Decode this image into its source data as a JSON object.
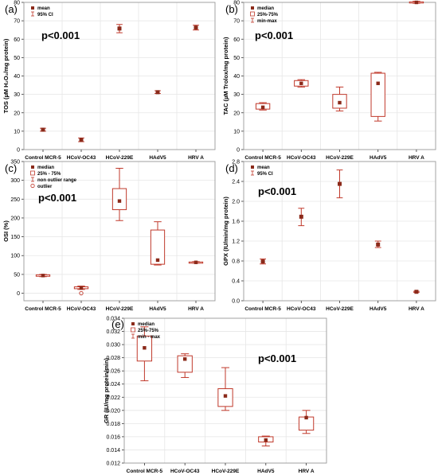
{
  "colors": {
    "box": "#c0392b",
    "point": "#8b2a1a",
    "axis": "#333333",
    "grid": "#e6e6e6",
    "text": "#000000"
  },
  "chart_data": [
    {
      "panel": "(a)",
      "type": "errorbar",
      "ylabel": "TOS (µM H₂O₂/mg protein)",
      "ylim": [
        0,
        80
      ],
      "yticks": [
        0,
        10,
        20,
        30,
        40,
        50,
        60,
        70,
        80
      ],
      "categories": [
        "Control MCR-5",
        "HCoV-OC43",
        "HCoV-229E",
        "HAdV5",
        "HRV A"
      ],
      "legend": [
        {
          "symbol": "square",
          "label": "mean"
        },
        {
          "symbol": "whisker",
          "label": "95% CI"
        }
      ],
      "pvalue": "p<0.001",
      "points": [
        {
          "center": 10.8,
          "lo": 10.0,
          "hi": 11.6
        },
        {
          "center": 5.3,
          "lo": 4.3,
          "hi": 6.3
        },
        {
          "center": 65.8,
          "lo": 63.5,
          "hi": 68.0
        },
        {
          "center": 31.2,
          "lo": 30.5,
          "hi": 32.0
        },
        {
          "center": 66.3,
          "lo": 65.0,
          "hi": 67.6
        }
      ]
    },
    {
      "panel": "(b)",
      "type": "box",
      "ylabel": "TAC (µM Trolox/mg protein)",
      "ylim": [
        0,
        80
      ],
      "yticks": [
        0,
        10,
        20,
        30,
        40,
        50,
        60,
        70,
        80
      ],
      "categories": [
        "Control MCR-5",
        "HCoV-OC43",
        "HCoV-229E",
        "HAdV5",
        "HRV A"
      ],
      "legend": [
        {
          "symbol": "dot",
          "label": "median"
        },
        {
          "symbol": "box",
          "label": "25%-75%"
        },
        {
          "symbol": "whisker",
          "label": "min-max"
        }
      ],
      "pvalue": "p<0.001",
      "boxes": [
        {
          "min": 21.5,
          "q1": 22.0,
          "median": 23.0,
          "q3": 25.0,
          "max": 25.5
        },
        {
          "min": 34.0,
          "q1": 34.5,
          "median": 36.0,
          "q3": 37.5,
          "max": 38.0
        },
        {
          "min": 21.0,
          "q1": 22.5,
          "median": 25.5,
          "q3": 30.0,
          "max": 34.0
        },
        {
          "min": 15.5,
          "q1": 18.0,
          "median": 36.0,
          "q3": 41.5,
          "max": 42.0
        },
        {
          "min": 79.5,
          "q1": 79.8,
          "median": 80.0,
          "q3": 80.3,
          "max": 80.6
        }
      ]
    },
    {
      "panel": "(c)",
      "type": "box",
      "ylabel": "OSI (%)",
      "ylim": [
        -20,
        350
      ],
      "yticks": [
        0,
        50,
        100,
        150,
        200,
        250,
        300,
        350
      ],
      "categories": [
        "Control MCR-5",
        "HCoV-OC43",
        "HCoV-229E",
        "HAdV5",
        "HRV A"
      ],
      "legend": [
        {
          "symbol": "square",
          "label": "median"
        },
        {
          "symbol": "box",
          "label": "25% - 75%"
        },
        {
          "symbol": "whisker",
          "label": "non outlier range"
        },
        {
          "symbol": "circle",
          "label": "outlier"
        }
      ],
      "pvalue": "p<0.001",
      "boxes": [
        {
          "min": 44,
          "q1": 45,
          "median": 47,
          "q3": 49,
          "max": 50
        },
        {
          "min": 10,
          "q1": 12,
          "median": 14,
          "q3": 17,
          "max": 19,
          "outliers": [
            0
          ]
        },
        {
          "min": 193,
          "q1": 222,
          "median": 245,
          "q3": 278,
          "max": 332
        },
        {
          "min": 75,
          "q1": 77,
          "median": 88,
          "q3": 168,
          "max": 190
        },
        {
          "min": 80,
          "q1": 81,
          "median": 82,
          "q3": 83,
          "max": 84
        }
      ]
    },
    {
      "panel": "(d)",
      "type": "errorbar",
      "ylabel": "GPX (IU/min/mg protein)",
      "ylim": [
        0,
        2.8
      ],
      "yticks": [
        0.0,
        0.4,
        0.8,
        1.2,
        1.6,
        2.0,
        2.4,
        2.8
      ],
      "categories": [
        "Control MCR-5",
        "HCoV-OC43",
        "HCoV-229E",
        "HAdV5",
        "HRV A"
      ],
      "legend": [
        {
          "symbol": "square",
          "label": "mean"
        },
        {
          "symbol": "whisker",
          "label": "95% CI"
        }
      ],
      "pvalue": "p<0.001",
      "points": [
        {
          "center": 0.79,
          "lo": 0.74,
          "hi": 0.84
        },
        {
          "center": 1.69,
          "lo": 1.51,
          "hi": 1.86
        },
        {
          "center": 2.35,
          "lo": 2.07,
          "hi": 2.63
        },
        {
          "center": 1.13,
          "lo": 1.07,
          "hi": 1.2
        },
        {
          "center": 0.18,
          "lo": 0.17,
          "hi": 0.19
        }
      ]
    },
    {
      "panel": "(e)",
      "type": "box",
      "ylabel": "GR (IU/mg protein/min)",
      "ylim": [
        0.012,
        0.034
      ],
      "yticks": [
        0.012,
        0.014,
        0.016,
        0.018,
        0.02,
        0.022,
        0.024,
        0.026,
        0.028,
        0.03,
        0.032,
        0.034
      ],
      "categories": [
        "Control MCR-5",
        "HCoV-OC43",
        "HCoV-229E",
        "HAdV5",
        "HRV A"
      ],
      "legend": [
        {
          "symbol": "square",
          "label": "median"
        },
        {
          "symbol": "box",
          "label": "25%-75%"
        },
        {
          "symbol": "whisker",
          "label": "min - max"
        }
      ],
      "pvalue": "p<0.001",
      "boxes": [
        {
          "min": 0.0245,
          "q1": 0.0275,
          "median": 0.0295,
          "q3": 0.0313,
          "max": 0.0327
        },
        {
          "min": 0.025,
          "q1": 0.0258,
          "median": 0.0278,
          "q3": 0.0283,
          "max": 0.0286
        },
        {
          "min": 0.02,
          "q1": 0.0206,
          "median": 0.0222,
          "q3": 0.0233,
          "max": 0.0265
        },
        {
          "min": 0.0146,
          "q1": 0.0152,
          "median": 0.0155,
          "q3": 0.016,
          "max": 0.0161
        },
        {
          "min": 0.0165,
          "q1": 0.017,
          "median": 0.0189,
          "q3": 0.019,
          "max": 0.02
        }
      ]
    }
  ]
}
